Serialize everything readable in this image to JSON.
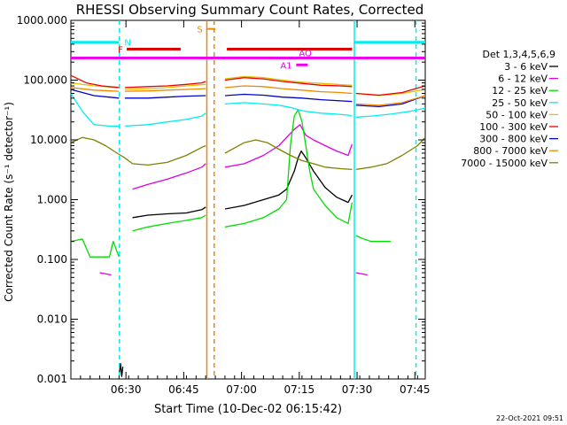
{
  "chart_data": {
    "type": "line",
    "title": "RHESSI Observing Summary Count Rates, Corrected",
    "xlabel": "Start Time (10-Dec-02 06:15:42)",
    "ylabel": "Corrected Count Rate (s⁻¹ detector⁻¹)",
    "yscale": "log",
    "ylim": [
      0.001,
      1000
    ],
    "xlim_minutes": [
      0,
      92
    ],
    "x_ticks": [
      {
        "label": "06:30",
        "minute": 14.3
      },
      {
        "label": "06:45",
        "minute": 29.3
      },
      {
        "label": "07:00",
        "minute": 44.3
      },
      {
        "label": "07:15",
        "minute": 59.3
      },
      {
        "label": "07:30",
        "minute": 74.3
      },
      {
        "label": "07:45",
        "minute": 89.3
      }
    ],
    "y_ticks": [
      "1000.000",
      "100.000",
      "10.000",
      "1.000",
      "0.100",
      "0.010",
      "0.001"
    ],
    "legend_title": "Det 1,3,4,5,6,9",
    "series": [
      {
        "name": "3 - 6 keV",
        "color": "#000000",
        "segments": [
          [
            [
              12.6,
              0.0013
            ],
            [
              12.9,
              0.0018
            ],
            [
              13.2,
              0.0011
            ],
            [
              13.5,
              0.0016
            ]
          ],
          [
            [
              16,
              0.5
            ],
            [
              20,
              0.55
            ],
            [
              25,
              0.58
            ],
            [
              30,
              0.6
            ],
            [
              34,
              0.68
            ],
            [
              35,
              0.75
            ]
          ],
          [
            [
              40,
              0.7
            ],
            [
              45,
              0.8
            ],
            [
              50,
              1.0
            ],
            [
              54,
              1.2
            ],
            [
              56,
              1.5
            ],
            [
              58,
              3.0
            ],
            [
              59,
              5.0
            ],
            [
              59.8,
              6.5
            ],
            [
              61,
              5.0
            ],
            [
              63,
              3.0
            ],
            [
              66,
              1.6
            ],
            [
              69,
              1.1
            ],
            [
              72,
              0.9
            ],
            [
              73,
              1.2
            ]
          ]
        ]
      },
      {
        "name": "6 - 12 keV",
        "color": "#dd00dd",
        "segments": [
          [
            [
              7.5,
              0.06
            ],
            [
              10.5,
              0.055
            ]
          ],
          [
            [
              16,
              1.5
            ],
            [
              20,
              1.8
            ],
            [
              25,
              2.2
            ],
            [
              30,
              2.8
            ],
            [
              34,
              3.5
            ],
            [
              35,
              4.0
            ]
          ],
          [
            [
              40,
              3.5
            ],
            [
              45,
              4.0
            ],
            [
              50,
              5.5
            ],
            [
              54,
              8.0
            ],
            [
              56,
              11.0
            ],
            [
              58,
              15.0
            ],
            [
              59.5,
              18.0
            ],
            [
              61,
              12.0
            ],
            [
              63,
              10.0
            ],
            [
              66,
              8.0
            ],
            [
              69,
              6.5
            ],
            [
              72,
              5.5
            ],
            [
              73,
              8.5
            ]
          ],
          [
            [
              74,
              0.06
            ],
            [
              77,
              0.055
            ]
          ]
        ]
      },
      {
        "name": "12 - 25 keV",
        "color": "#00dd00",
        "segments": [
          [
            [
              0,
              0.2
            ],
            [
              3,
              0.22
            ],
            [
              5,
              0.11
            ],
            [
              10,
              0.11
            ],
            [
              11,
              0.2
            ],
            [
              12.5,
              0.11
            ]
          ],
          [
            [
              16,
              0.3
            ],
            [
              20,
              0.35
            ],
            [
              25,
              0.4
            ],
            [
              30,
              0.45
            ],
            [
              34,
              0.5
            ],
            [
              35,
              0.55
            ]
          ],
          [
            [
              40,
              0.35
            ],
            [
              45,
              0.4
            ],
            [
              50,
              0.5
            ],
            [
              54,
              0.7
            ],
            [
              56,
              1.0
            ],
            [
              57,
              8.0
            ],
            [
              58,
              25.0
            ],
            [
              59,
              32.0
            ],
            [
              60,
              20.0
            ],
            [
              61,
              8.0
            ],
            [
              62,
              3.0
            ],
            [
              63,
              1.5
            ],
            [
              66,
              0.8
            ],
            [
              69,
              0.5
            ],
            [
              72,
              0.4
            ],
            [
              73,
              0.9
            ]
          ],
          [
            [
              74,
              0.25
            ],
            [
              76,
              0.22
            ],
            [
              78,
              0.2
            ],
            [
              83,
              0.2
            ]
          ]
        ]
      },
      {
        "name": "25 - 50 keV",
        "color": "#00eeee",
        "segments": [
          [
            [
              0,
              60
            ],
            [
              3,
              30
            ],
            [
              6,
              18
            ],
            [
              10,
              17
            ],
            [
              12.5,
              17
            ]
          ],
          [
            [
              14,
              17
            ],
            [
              20,
              18
            ],
            [
              25,
              20
            ],
            [
              30,
              22
            ],
            [
              34,
              25
            ],
            [
              35,
              28
            ]
          ],
          [
            [
              40,
              40
            ],
            [
              45,
              42
            ],
            [
              50,
              40
            ],
            [
              54,
              38
            ],
            [
              57,
              35
            ],
            [
              59,
              32
            ],
            [
              61,
              30
            ],
            [
              65,
              28
            ],
            [
              69,
              27
            ],
            [
              72,
              26
            ],
            [
              73,
              25
            ]
          ],
          [
            [
              74,
              24
            ],
            [
              78,
              25
            ],
            [
              83,
              27
            ],
            [
              88,
              30
            ],
            [
              92,
              34
            ]
          ]
        ]
      },
      {
        "name": "50 - 100 keV",
        "color": "#e0c000",
        "segments": [
          [
            [
              0,
              90
            ],
            [
              6,
              80
            ],
            [
              12.5,
              75
            ]
          ],
          [
            [
              14,
              70
            ],
            [
              20,
              72
            ],
            [
              25,
              75
            ],
            [
              30,
              80
            ],
            [
              35,
              85
            ]
          ],
          [
            [
              40,
              105
            ],
            [
              45,
              115
            ],
            [
              50,
              110
            ],
            [
              55,
              100
            ],
            [
              60,
              92
            ],
            [
              65,
              88
            ],
            [
              70,
              84
            ],
            [
              73,
              82
            ]
          ],
          [
            [
              74,
              60
            ],
            [
              80,
              55
            ],
            [
              86,
              60
            ],
            [
              92,
              70
            ]
          ]
        ]
      },
      {
        "name": "100 - 300 keV",
        "color": "#ee0000",
        "segments": [
          [
            [
              0,
              120
            ],
            [
              4,
              90
            ],
            [
              8,
              80
            ],
            [
              12.5,
              75
            ]
          ],
          [
            [
              14,
              75
            ],
            [
              20,
              78
            ],
            [
              25,
              80
            ],
            [
              30,
              85
            ],
            [
              34,
              90
            ],
            [
              35,
              95
            ]
          ],
          [
            [
              40,
              100
            ],
            [
              45,
              110
            ],
            [
              50,
              105
            ],
            [
              55,
              95
            ],
            [
              60,
              88
            ],
            [
              65,
              82
            ],
            [
              70,
              80
            ],
            [
              73,
              78
            ]
          ],
          [
            [
              74,
              60
            ],
            [
              80,
              56
            ],
            [
              86,
              62
            ],
            [
              92,
              80
            ]
          ]
        ]
      },
      {
        "name": "300 - 800 keV",
        "color": "#0000cc",
        "segments": [
          [
            [
              0,
              70
            ],
            [
              6,
              55
            ],
            [
              12.5,
              50
            ]
          ],
          [
            [
              14,
              50
            ],
            [
              20,
              50
            ],
            [
              25,
              52
            ],
            [
              30,
              54
            ],
            [
              35,
              55
            ]
          ],
          [
            [
              40,
              55
            ],
            [
              45,
              58
            ],
            [
              50,
              56
            ],
            [
              55,
              52
            ],
            [
              60,
              50
            ],
            [
              65,
              47
            ],
            [
              70,
              45
            ],
            [
              73,
              44
            ]
          ],
          [
            [
              74,
              38
            ],
            [
              80,
              36
            ],
            [
              86,
              40
            ],
            [
              92,
              55
            ]
          ]
        ]
      },
      {
        "name": "800 - 7000 keV",
        "color": "#ee8800",
        "segments": [
          [
            [
              0,
              75
            ],
            [
              6,
              68
            ],
            [
              12.5,
              65
            ]
          ],
          [
            [
              14,
              65
            ],
            [
              20,
              66
            ],
            [
              25,
              68
            ],
            [
              30,
              70
            ],
            [
              35,
              72
            ]
          ],
          [
            [
              40,
              75
            ],
            [
              45,
              80
            ],
            [
              50,
              78
            ],
            [
              55,
              72
            ],
            [
              60,
              68
            ],
            [
              65,
              64
            ],
            [
              70,
              62
            ],
            [
              73,
              60
            ]
          ],
          [
            [
              74,
              40
            ],
            [
              80,
              38
            ],
            [
              86,
              42
            ],
            [
              92,
              55
            ]
          ]
        ]
      },
      {
        "name": "7000 - 15000 keV",
        "color": "#808000",
        "segments": [
          [
            [
              0,
              9
            ],
            [
              3,
              11
            ],
            [
              6,
              10
            ],
            [
              9,
              8
            ],
            [
              12,
              6
            ],
            [
              14,
              5
            ],
            [
              16,
              4
            ],
            [
              20,
              3.8
            ],
            [
              25,
              4.2
            ],
            [
              30,
              5.5
            ],
            [
              34,
              7.5
            ],
            [
              35,
              8
            ]
          ],
          [
            [
              40,
              6
            ],
            [
              45,
              9
            ],
            [
              48,
              10
            ],
            [
              51,
              9
            ],
            [
              54,
              7
            ],
            [
              57,
              5.5
            ],
            [
              60,
              4.5
            ],
            [
              63,
              4.0
            ],
            [
              66,
              3.5
            ],
            [
              70,
              3.3
            ],
            [
              73,
              3.2
            ]
          ],
          [
            [
              74,
              3.2
            ],
            [
              78,
              3.5
            ],
            [
              82,
              4.0
            ],
            [
              86,
              5.5
            ],
            [
              90,
              8.0
            ],
            [
              92,
              11.0
            ]
          ]
        ]
      }
    ],
    "flag_bars": [
      {
        "label": "N",
        "color": "#00eeee",
        "value": 430,
        "ranges": [
          [
            0,
            12.5
          ],
          [
            73.5,
            92
          ]
        ]
      },
      {
        "label": "F",
        "color": "#dd0000",
        "value": 330,
        "ranges": [
          [
            14.5,
            28.5
          ],
          [
            40.5,
            73
          ]
        ]
      },
      {
        "label": "S",
        "color": "#ee8800",
        "value": 720,
        "ranges": [
          [
            35.5,
            37.5
          ]
        ]
      },
      {
        "label": "",
        "color": "#ee00ee",
        "value": 235,
        "ranges": [
          [
            0,
            92
          ]
        ]
      },
      {
        "label": "A1",
        "color": "#ee00ee",
        "value": 180,
        "ranges": [
          [
            58.5,
            61.5
          ]
        ]
      },
      {
        "label": "AQ",
        "color": "#ee00ee",
        "value": 290,
        "ranges": []
      }
    ],
    "marker_lines": [
      {
        "minute": 12.6,
        "color": "#00eeee",
        "style": "dashed"
      },
      {
        "minute": 35.3,
        "color": "#ee8800",
        "style": "solid"
      },
      {
        "minute": 37.2,
        "color": "#ee8800",
        "style": "dashed"
      },
      {
        "minute": 73.6,
        "color": "#00eeee",
        "style": "solid"
      },
      {
        "minute": 89.6,
        "color": "#00eeee",
        "style": "dashed"
      }
    ]
  },
  "footer": {
    "date_stamp": "22-Oct-2021 09:51"
  }
}
